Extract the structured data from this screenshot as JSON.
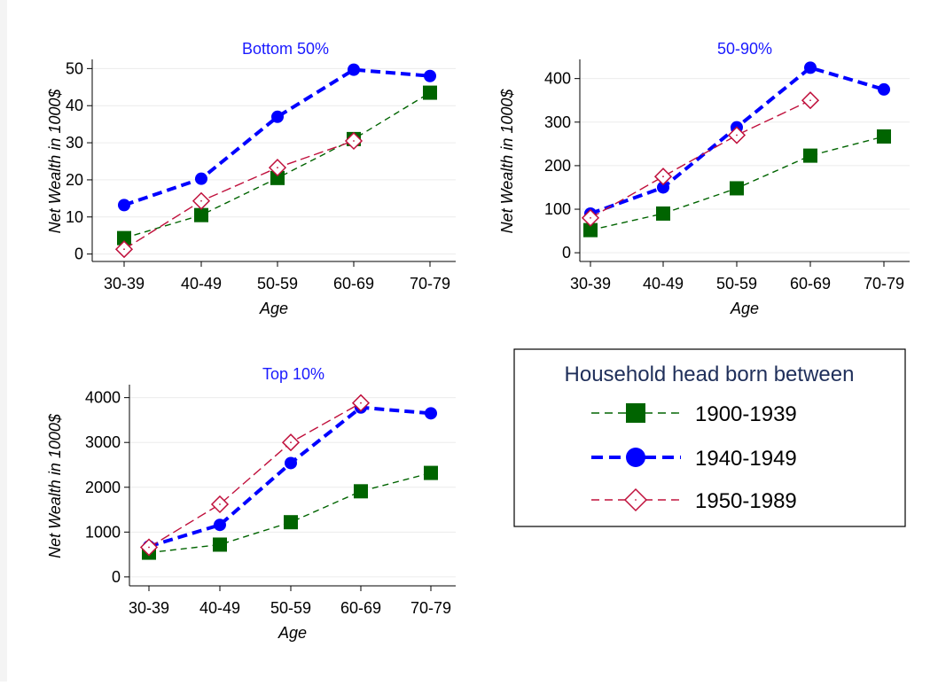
{
  "chart_data": [
    {
      "type": "line",
      "title": "Bottom 50%",
      "xlabel": "Age",
      "ylabel": "Net Wealth in 1000$",
      "categories": [
        "30-39",
        "40-49",
        "50-59",
        "60-69",
        "70-79"
      ],
      "yticks": [
        0,
        10,
        20,
        30,
        40,
        50
      ],
      "ylim": [
        -2,
        52
      ],
      "grid": true,
      "series": [
        {
          "name": "1900-1939",
          "values": [
            4.3,
            10.5,
            20.5,
            31,
            43.5
          ]
        },
        {
          "name": "1940-1949",
          "values": [
            13.2,
            20.3,
            37,
            49.7,
            48
          ]
        },
        {
          "name": "1950-1989",
          "values": [
            1.3,
            14.3,
            23.3,
            30.5,
            null
          ]
        }
      ]
    },
    {
      "type": "line",
      "title": "50-90%",
      "xlabel": "Age",
      "ylabel": "Net Wealth in 1000$",
      "categories": [
        "30-39",
        "40-49",
        "50-59",
        "60-69",
        "70-79"
      ],
      "yticks": [
        0,
        100,
        200,
        300,
        400
      ],
      "ylim": [
        -20,
        440
      ],
      "grid": true,
      "series": [
        {
          "name": "1900-1939",
          "values": [
            52,
            90,
            148,
            223,
            267
          ]
        },
        {
          "name": "1940-1949",
          "values": [
            90,
            150,
            288,
            425,
            375
          ]
        },
        {
          "name": "1950-1989",
          "values": [
            80,
            175,
            270,
            350,
            null
          ]
        }
      ]
    },
    {
      "type": "line",
      "title": "Top 10%",
      "xlabel": "Age",
      "ylabel": "Net Wealth in 1000$",
      "categories": [
        "30-39",
        "40-49",
        "50-59",
        "60-69",
        "70-79"
      ],
      "yticks": [
        0,
        1000,
        2000,
        3000,
        4000
      ],
      "ylim": [
        -200,
        4250
      ],
      "grid": true,
      "series": [
        {
          "name": "1900-1939",
          "values": [
            540,
            720,
            1220,
            1910,
            2320
          ]
        },
        {
          "name": "1940-1949",
          "values": [
            680,
            1160,
            2540,
            3780,
            3650
          ]
        },
        {
          "name": "1950-1989",
          "values": [
            660,
            1620,
            3000,
            3880,
            null
          ]
        }
      ]
    }
  ],
  "legend": {
    "title": "Household head born between",
    "placement": "bottom-right",
    "items": [
      {
        "label": "1900-1939",
        "color": "#006400",
        "marker": "square",
        "line": "dashed-thin"
      },
      {
        "label": "1940-1949",
        "color": "#0000ff",
        "marker": "circle",
        "line": "dashed-thick"
      },
      {
        "label": "1950-1989",
        "color": "#c0103c",
        "marker": "hollow-diamond",
        "line": "dashed-thin"
      }
    ]
  },
  "colors": {
    "title": "#1a1aff",
    "series_1900_1939": "#006400",
    "series_1940_1949": "#0000ff",
    "series_1950_1989": "#c0103c",
    "grid": "#ececec",
    "axis": "#000000",
    "legend_title": "#1f2f5a"
  }
}
